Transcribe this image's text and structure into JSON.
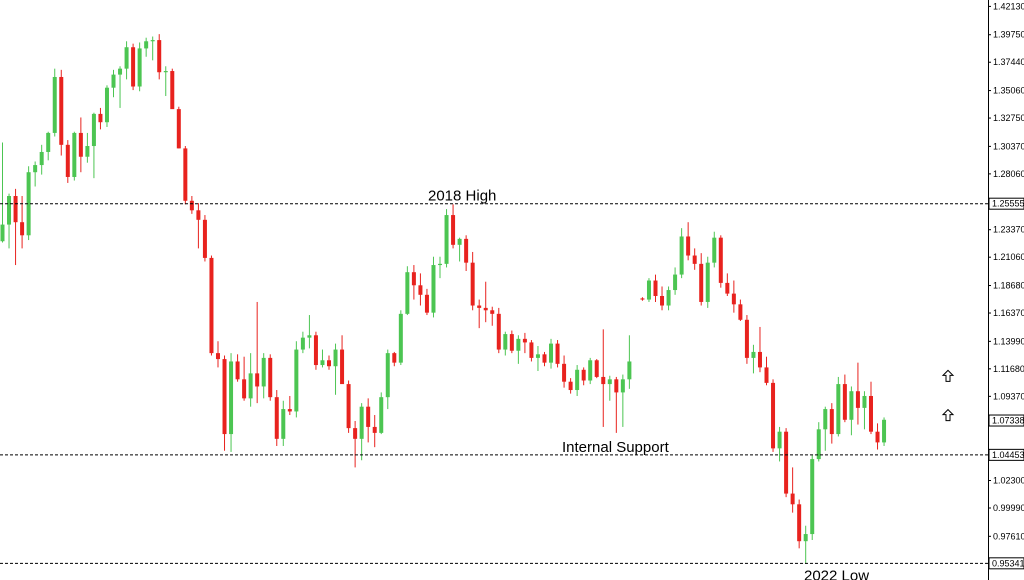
{
  "colors": {
    "up": "#4cc552",
    "down": "#e8221e",
    "text": "#000000",
    "line": "#000000",
    "background": "#ffffff"
  },
  "chart_data": {
    "type": "candlestick",
    "title": "",
    "xlabel": "",
    "ylabel": "",
    "ylim": [
      0.952,
      1.425
    ],
    "x_ticks_visible": false,
    "grid": false,
    "y_ticks": [
      "1.42130",
      "1.39750",
      "1.37440",
      "1.35060",
      "1.32750",
      "1.30370",
      "1.28060",
      "1.23370",
      "1.21060",
      "1.18680",
      "1.16370",
      "1.13990",
      "1.11680",
      "1.09370",
      "1.02300",
      "0.99990",
      "0.97610"
    ],
    "marked_levels": [
      {
        "label": "1.25555",
        "value": 1.25555,
        "annotation": "2018 High",
        "annotation_pos": "left-center"
      },
      {
        "label": "1.04453",
        "value": 1.04453,
        "annotation": "Internal Support",
        "annotation_pos": "center"
      },
      {
        "label": "0.95341",
        "value": 0.95341,
        "annotation": "2022 Low",
        "annotation_pos": "below-right"
      }
    ],
    "current_price": {
      "label": "1.07338",
      "value": 1.07338
    },
    "arrows": [
      {
        "name": "up-arrow",
        "value": 1.1105,
        "offset": 0
      },
      {
        "name": "up-arrow",
        "value": 1.0775,
        "offset": 0
      }
    ],
    "candles": [
      [
        1.224,
        1.307,
        1.223,
        1.238
      ],
      [
        1.238,
        1.264,
        1.218,
        1.262
      ],
      [
        1.262,
        1.268,
        1.204,
        1.24
      ],
      [
        1.24,
        1.262,
        1.218,
        1.229
      ],
      [
        1.229,
        1.287,
        1.225,
        1.282
      ],
      [
        1.282,
        1.291,
        1.27,
        1.288
      ],
      [
        1.288,
        1.305,
        1.28,
        1.299
      ],
      [
        1.299,
        1.316,
        1.292,
        1.315
      ],
      [
        1.315,
        1.369,
        1.312,
        1.362
      ],
      [
        1.362,
        1.368,
        1.296,
        1.305
      ],
      [
        1.305,
        1.309,
        1.273,
        1.278
      ],
      [
        1.278,
        1.316,
        1.275,
        1.315
      ],
      [
        1.315,
        1.328,
        1.282,
        1.295
      ],
      [
        1.295,
        1.315,
        1.29,
        1.304
      ],
      [
        1.304,
        1.332,
        1.277,
        1.331
      ],
      [
        1.331,
        1.336,
        1.318,
        1.324
      ],
      [
        1.324,
        1.355,
        1.32,
        1.353
      ],
      [
        1.353,
        1.368,
        1.345,
        1.364
      ],
      [
        1.364,
        1.371,
        1.336,
        1.369
      ],
      [
        1.369,
        1.392,
        1.36,
        1.387
      ],
      [
        1.387,
        1.39,
        1.351,
        1.354
      ],
      [
        1.354,
        1.391,
        1.35,
        1.386
      ],
      [
        1.386,
        1.395,
        1.379,
        1.392
      ],
      [
        1.392,
        1.396,
        1.376,
        1.393
      ],
      [
        1.393,
        1.398,
        1.36,
        1.366
      ],
      [
        1.366,
        1.371,
        1.346,
        1.367
      ],
      [
        1.367,
        1.369,
        1.34,
        1.335
      ],
      [
        1.335,
        1.337,
        1.302,
        1.302
      ],
      [
        1.302,
        1.304,
        1.255,
        1.258
      ],
      [
        1.258,
        1.262,
        1.247,
        1.25
      ],
      [
        1.25,
        1.256,
        1.218,
        1.242
      ],
      [
        1.242,
        1.246,
        1.207,
        1.21
      ],
      [
        1.21,
        1.212,
        1.128,
        1.13
      ],
      [
        1.13,
        1.14,
        1.118,
        1.125
      ],
      [
        1.125,
        1.128,
        1.048,
        1.062
      ],
      [
        1.062,
        1.13,
        1.047,
        1.123
      ],
      [
        1.123,
        1.129,
        1.106,
        1.108
      ],
      [
        1.108,
        1.127,
        1.09,
        1.092
      ],
      [
        1.092,
        1.13,
        1.085,
        1.113
      ],
      [
        1.113,
        1.173,
        1.088,
        1.102
      ],
      [
        1.102,
        1.13,
        1.092,
        1.126
      ],
      [
        1.126,
        1.129,
        1.09,
        1.093
      ],
      [
        1.093,
        1.099,
        1.052,
        1.058
      ],
      [
        1.058,
        1.09,
        1.052,
        1.083
      ],
      [
        1.083,
        1.094,
        1.078,
        1.081
      ],
      [
        1.081,
        1.14,
        1.076,
        1.133
      ],
      [
        1.133,
        1.148,
        1.13,
        1.143
      ],
      [
        1.143,
        1.162,
        1.134,
        1.145
      ],
      [
        1.145,
        1.148,
        1.116,
        1.12
      ],
      [
        1.12,
        1.133,
        1.118,
        1.124
      ],
      [
        1.124,
        1.128,
        1.116,
        1.119
      ],
      [
        1.119,
        1.138,
        1.095,
        1.133
      ],
      [
        1.133,
        1.145,
        1.116,
        1.104
      ],
      [
        1.104,
        1.107,
        1.063,
        1.067
      ],
      [
        1.067,
        1.073,
        1.034,
        1.058
      ],
      [
        1.058,
        1.088,
        1.04,
        1.085
      ],
      [
        1.085,
        1.092,
        1.055,
        1.068
      ],
      [
        1.068,
        1.078,
        1.051,
        1.063
      ],
      [
        1.063,
        1.097,
        1.062,
        1.093
      ],
      [
        1.093,
        1.133,
        1.083,
        1.13
      ],
      [
        1.13,
        1.131,
        1.119,
        1.122
      ],
      [
        1.122,
        1.166,
        1.12,
        1.163
      ],
      [
        1.163,
        1.203,
        1.162,
        1.198
      ],
      [
        1.198,
        1.204,
        1.175,
        1.187
      ],
      [
        1.187,
        1.197,
        1.17,
        1.179
      ],
      [
        1.179,
        1.184,
        1.162,
        1.164
      ],
      [
        1.164,
        1.211,
        1.16,
        1.204
      ],
      [
        1.204,
        1.211,
        1.193,
        1.205
      ],
      [
        1.205,
        1.251,
        1.202,
        1.246
      ],
      [
        1.246,
        1.255,
        1.218,
        1.221
      ],
      [
        1.221,
        1.227,
        1.207,
        1.226
      ],
      [
        1.226,
        1.229,
        1.199,
        1.206
      ],
      [
        1.206,
        1.215,
        1.166,
        1.17
      ],
      [
        1.17,
        1.175,
        1.151,
        1.168
      ],
      [
        1.168,
        1.19,
        1.156,
        1.166
      ],
      [
        1.166,
        1.169,
        1.153,
        1.163
      ],
      [
        1.163,
        1.168,
        1.13,
        1.133
      ],
      [
        1.133,
        1.148,
        1.128,
        1.146
      ],
      [
        1.146,
        1.149,
        1.13,
        1.132
      ],
      [
        1.132,
        1.145,
        1.121,
        1.142
      ],
      [
        1.142,
        1.147,
        1.13,
        1.139
      ],
      [
        1.139,
        1.141,
        1.123,
        1.126
      ],
      [
        1.126,
        1.136,
        1.115,
        1.129
      ],
      [
        1.129,
        1.131,
        1.119,
        1.122
      ],
      [
        1.122,
        1.142,
        1.117,
        1.138
      ],
      [
        1.138,
        1.141,
        1.118,
        1.121
      ],
      [
        1.121,
        1.128,
        1.101,
        1.106
      ],
      [
        1.106,
        1.109,
        1.096,
        1.099
      ],
      [
        1.099,
        1.12,
        1.094,
        1.116
      ],
      [
        1.116,
        1.118,
        1.103,
        1.107
      ],
      [
        1.107,
        1.126,
        1.104,
        1.124
      ],
      [
        1.124,
        1.125,
        1.109,
        1.11
      ],
      [
        1.11,
        1.15,
        1.068,
        1.104
      ],
      [
        1.104,
        1.111,
        1.09,
        1.108
      ],
      [
        1.108,
        1.11,
        1.063,
        1.097
      ],
      [
        1.097,
        1.112,
        1.068,
        1.108
      ],
      [
        1.108,
        1.145,
        1.1,
        1.123
      ],
      null,
      [
        1.176,
        1.177,
        1.174,
        1.175
      ],
      [
        1.175,
        1.193,
        1.173,
        1.191
      ],
      [
        1.191,
        1.196,
        1.173,
        1.178
      ],
      [
        1.178,
        1.186,
        1.166,
        1.17
      ],
      [
        1.17,
        1.186,
        1.166,
        1.183
      ],
      [
        1.183,
        1.202,
        1.179,
        1.196
      ],
      [
        1.196,
        1.235,
        1.193,
        1.228
      ],
      [
        1.228,
        1.24,
        1.208,
        1.212
      ],
      [
        1.212,
        1.218,
        1.2,
        1.205
      ],
      [
        1.205,
        1.214,
        1.17,
        1.173
      ],
      [
        1.173,
        1.211,
        1.168,
        1.206
      ],
      [
        1.206,
        1.232,
        1.202,
        1.227
      ],
      [
        1.227,
        1.229,
        1.185,
        1.189
      ],
      [
        1.189,
        1.197,
        1.178,
        1.18
      ],
      [
        1.18,
        1.191,
        1.164,
        1.171
      ],
      [
        1.171,
        1.175,
        1.157,
        1.158
      ],
      [
        1.158,
        1.162,
        1.121,
        1.126
      ],
      [
        1.126,
        1.137,
        1.113,
        1.131
      ],
      [
        1.131,
        1.152,
        1.114,
        1.118
      ],
      [
        1.118,
        1.127,
        1.103,
        1.105
      ],
      [
        1.105,
        1.108,
        1.047,
        1.05
      ],
      [
        1.05,
        1.068,
        1.039,
        1.064
      ],
      [
        1.064,
        1.067,
        1.009,
        1.012
      ],
      [
        1.012,
        1.034,
        0.996,
        1.003
      ],
      [
        1.003,
        1.007,
        0.966,
        0.972
      ],
      [
        0.972,
        0.985,
        0.953,
        0.978
      ],
      [
        0.978,
        1.044,
        0.973,
        1.041
      ],
      [
        1.041,
        1.072,
        1.039,
        1.066
      ],
      [
        1.066,
        1.085,
        1.048,
        1.083
      ],
      [
        1.083,
        1.088,
        1.054,
        1.062
      ],
      [
        1.062,
        1.11,
        1.06,
        1.104
      ],
      [
        1.104,
        1.112,
        1.072,
        1.074
      ],
      [
        1.074,
        1.102,
        1.061,
        1.098
      ],
      [
        1.098,
        1.122,
        1.07,
        1.084
      ],
      [
        1.084,
        1.098,
        1.066,
        1.094
      ],
      [
        1.094,
        1.106,
        1.062,
        1.064
      ],
      [
        1.064,
        1.071,
        1.049,
        1.055
      ],
      [
        1.055,
        1.076,
        1.052,
        1.074
      ]
    ]
  }
}
